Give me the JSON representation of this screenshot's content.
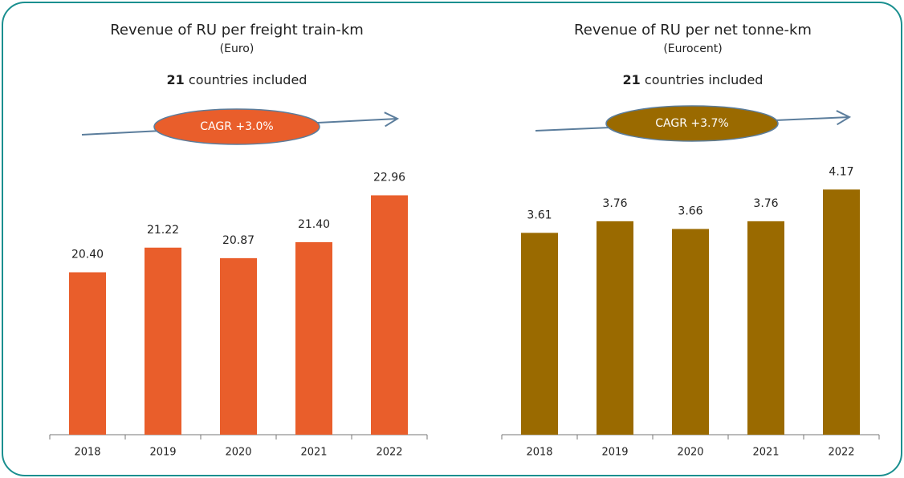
{
  "chart_data": [
    {
      "type": "bar",
      "title": "Revenue of RU per freight train-km",
      "subtitle": "(Euro)",
      "note_count": "21",
      "note_text": "countries included",
      "annotation": "CAGR +3.0%",
      "categories": [
        "2018",
        "2019",
        "2020",
        "2021",
        "2022"
      ],
      "values": [
        20.4,
        21.22,
        20.87,
        21.4,
        22.96
      ],
      "value_labels": [
        "20.40",
        "21.22",
        "20.87",
        "21.40",
        "22.96"
      ],
      "color": "#e95e2b",
      "ylim": [
        15,
        24
      ]
    },
    {
      "type": "bar",
      "title": "Revenue of RU per net tonne-km",
      "subtitle": "(Eurocent)",
      "note_count": "21",
      "note_text": "countries included",
      "annotation": "CAGR +3.7%",
      "categories": [
        "2018",
        "2019",
        "2020",
        "2021",
        "2022"
      ],
      "values": [
        3.61,
        3.76,
        3.66,
        3.76,
        4.17
      ],
      "value_labels": [
        "3.61",
        "3.76",
        "3.66",
        "3.76",
        "4.17"
      ],
      "color": "#9a6a00",
      "ylim": [
        1,
        4.5
      ]
    }
  ]
}
